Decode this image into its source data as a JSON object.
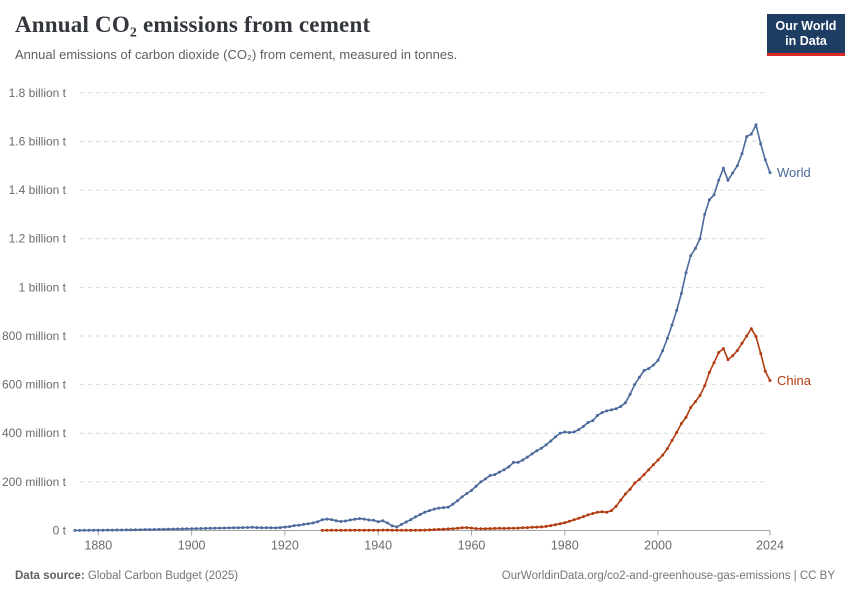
{
  "header": {
    "title": "Annual CO₂ emissions from cement",
    "subtitle": "Annual emissions of carbon dioxide (CO₂) from cement, measured in tonnes.",
    "logo": {
      "line1": "Our World",
      "line2": "in Data",
      "bg_color": "#1d3d63",
      "bar_color": "#dc2a27"
    }
  },
  "footer": {
    "source_label": "Data source:",
    "source_value": " Global Carbon Budget (2025)",
    "credit": "OurWorldinData.org/co2-and-greenhouse-gas-emissions | CC BY"
  },
  "chart_data": {
    "type": "line",
    "title": "Annual CO₂ emissions from cement",
    "unit": "million tonnes of CO₂",
    "grid": true,
    "legend_position": "end-of-line",
    "xlim": [
      1875,
      2024
    ],
    "ylim": [
      0,
      1800
    ],
    "grid_color": "#d9d9d9",
    "axis_color": "#a5a5a5",
    "tick_label_color": "#6b6b6b",
    "xticks": [
      1880,
      1900,
      1920,
      1940,
      1960,
      1980,
      2000,
      2024
    ],
    "yticks": [
      {
        "value": 0,
        "label": "0 t"
      },
      {
        "value": 200,
        "label": "200 million t"
      },
      {
        "value": 400,
        "label": "400 million t"
      },
      {
        "value": 600,
        "label": "600 million t"
      },
      {
        "value": 800,
        "label": "800 million t"
      },
      {
        "value": 1000,
        "label": "1 billion t"
      },
      {
        "value": 1200,
        "label": "1.2 billion t"
      },
      {
        "value": 1400,
        "label": "1.4 billion t"
      },
      {
        "value": 1600,
        "label": "1.6 billion t"
      },
      {
        "value": 1800,
        "label": "1.8 billion t"
      }
    ],
    "series": [
      {
        "name": "World",
        "color": "#4c6a9c",
        "start_year": 1875,
        "end_year": 2024,
        "values": [
          0.5,
          0.6,
          0.8,
          0.9,
          1.1,
          1.3,
          1.4,
          1.6,
          1.8,
          2.0,
          2.2,
          2.4,
          2.6,
          2.9,
          3.2,
          3.5,
          3.8,
          4.1,
          4.4,
          4.8,
          5.2,
          5.6,
          6.0,
          6.4,
          6.9,
          7.4,
          7.8,
          8.2,
          8.6,
          9.0,
          9.4,
          9.8,
          10.2,
          10.6,
          11.0,
          11.5,
          12.0,
          12.5,
          13.0,
          12.0,
          11.0,
          11.5,
          11.0,
          10.5,
          12.0,
          14,
          16,
          20,
          22,
          25,
          28,
          31,
          36,
          44,
          47,
          45,
          40,
          37,
          39,
          43,
          46,
          49,
          47,
          43,
          42,
          36,
          40,
          31,
          19,
          15,
          25,
          35,
          45,
          56,
          66,
          75,
          82,
          88,
          92,
          94,
          96,
          108,
          122,
          138,
          152,
          165,
          182,
          200,
          212,
          226,
          230,
          240,
          250,
          262,
          280,
          280,
          290,
          302,
          315,
          328,
          338,
          352,
          368,
          385,
          400,
          405,
          403,
          405,
          415,
          428,
          444,
          452,
          473,
          485,
          492,
          496,
          501,
          510,
          525,
          560,
          600,
          630,
          658,
          666,
          680,
          700,
          740,
          790,
          845,
          905,
          975,
          1060,
          1130,
          1160,
          1200,
          1300,
          1360,
          1380,
          1440,
          1490,
          1440,
          1470,
          1500,
          1550,
          1620,
          1630,
          1668,
          1590,
          1525,
          1472
        ]
      },
      {
        "name": "China",
        "color": "#b23c10",
        "start_year": 1928,
        "end_year": 2024,
        "values": [
          0.6,
          0.8,
          0.8,
          0.9,
          0.9,
          1.0,
          1.1,
          1.2,
          1.3,
          1.2,
          1.1,
          1.2,
          1.3,
          1.5,
          1.6,
          1.3,
          1.0,
          0.8,
          0.8,
          0.9,
          1.0,
          1.2,
          1.8,
          2.5,
          3.5,
          4.5,
          5.5,
          6.5,
          7.5,
          9,
          11,
          12,
          10,
          8,
          7,
          7.5,
          8,
          8.5,
          9,
          8.5,
          9,
          9.5,
          10,
          11,
          12,
          13,
          14,
          15,
          17,
          20,
          24,
          28,
          32,
          38,
          44,
          50,
          57,
          64,
          70,
          75,
          77,
          75,
          82,
          100,
          125,
          150,
          170,
          195,
          210,
          230,
          250,
          270,
          290,
          310,
          337,
          370,
          403,
          440,
          465,
          506,
          530,
          555,
          595,
          650,
          690,
          732,
          748,
          703,
          719,
          740,
          770,
          800,
          830,
          798,
          728,
          655,
          617
        ]
      }
    ]
  }
}
